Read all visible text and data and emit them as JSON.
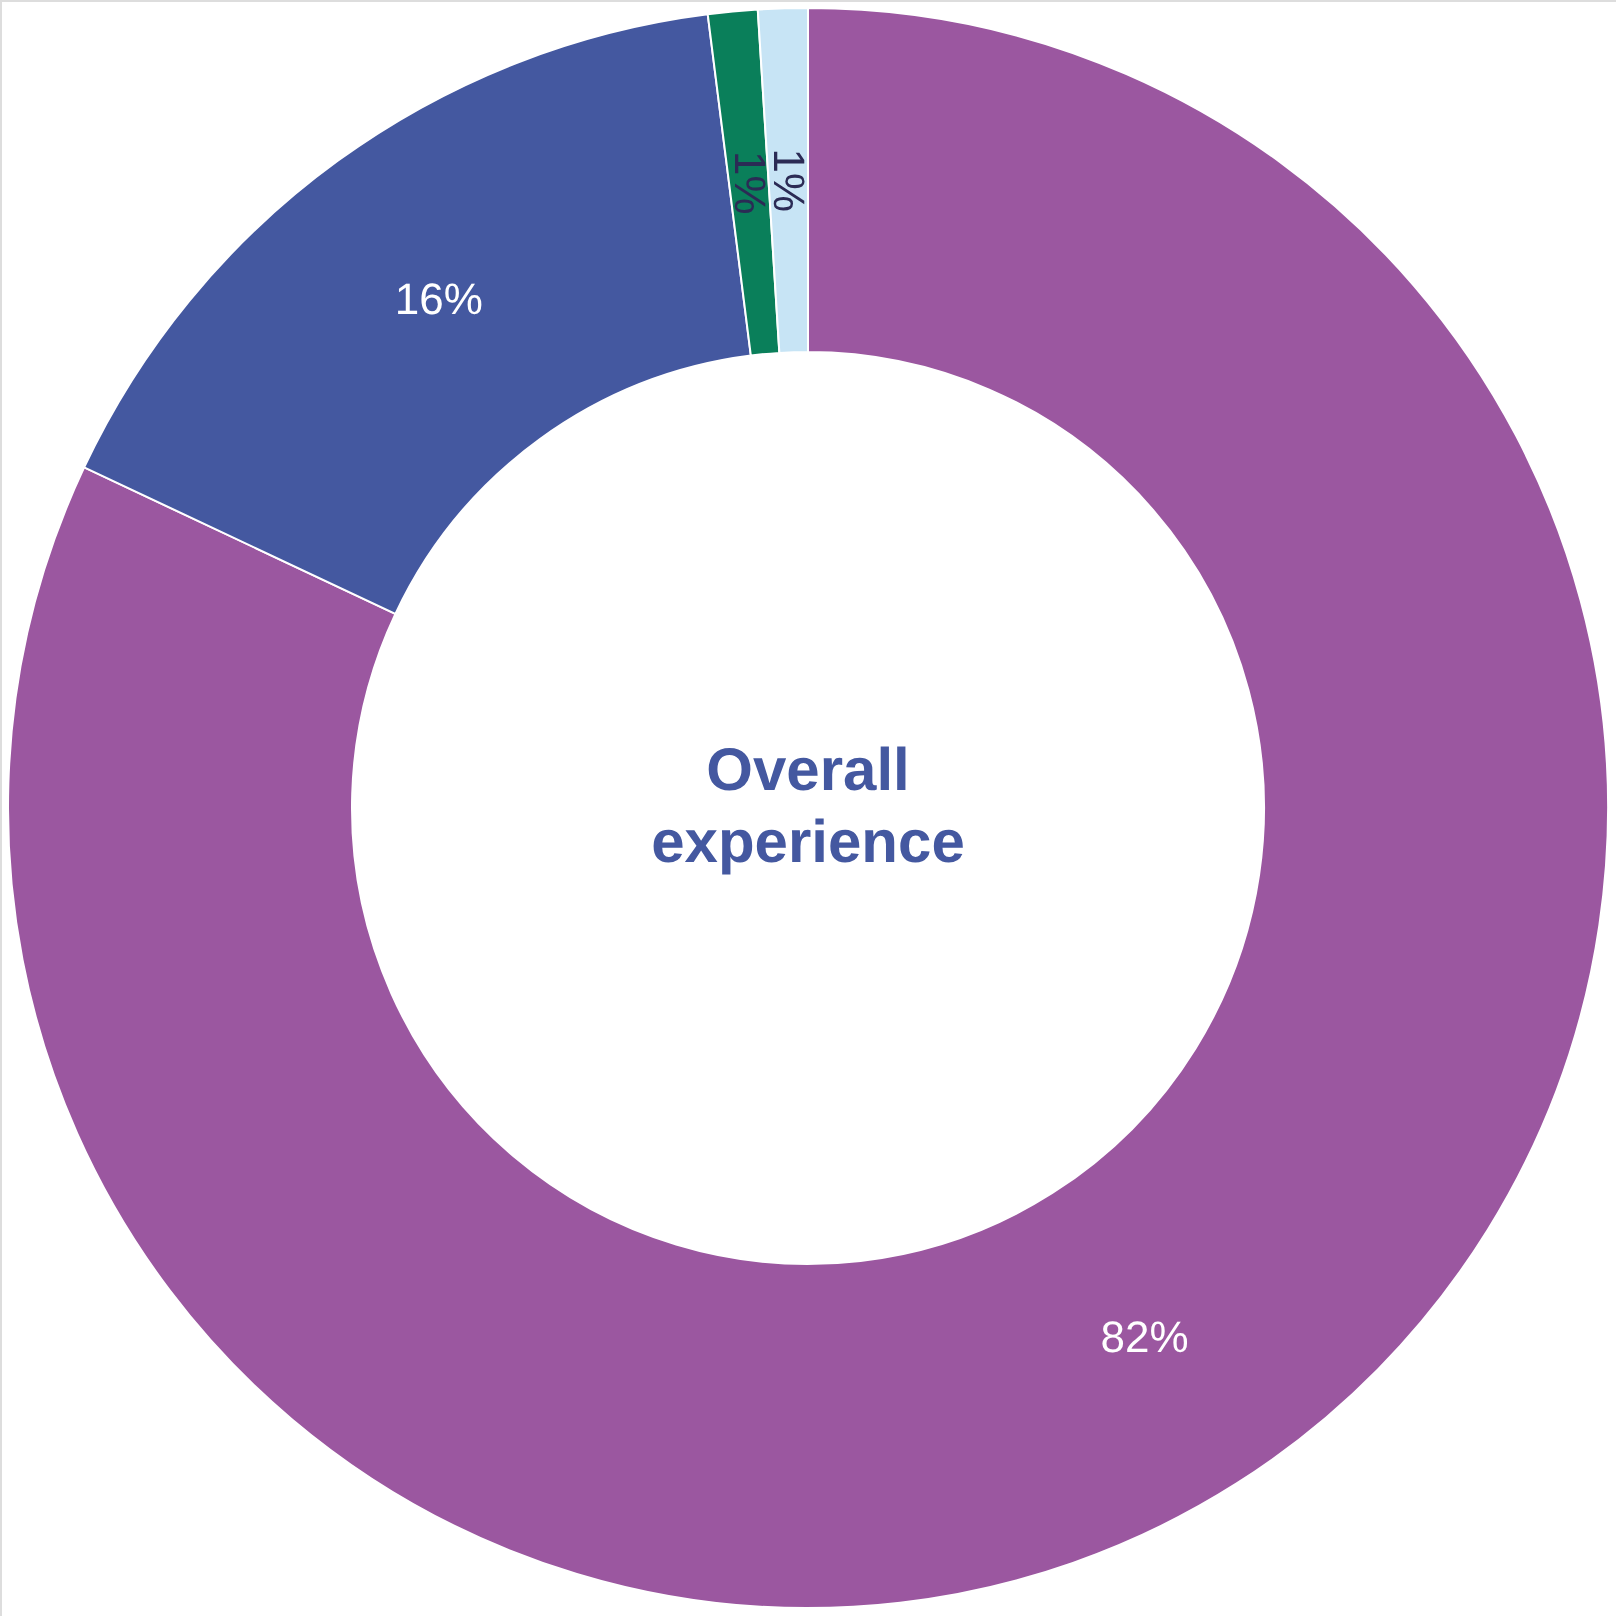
{
  "chart_data": {
    "type": "donut",
    "title": "Overall experience",
    "categories": [
      null,
      null,
      null,
      null
    ],
    "values": [
      82,
      16,
      1,
      1
    ],
    "value_labels": [
      "82%",
      "16%",
      "1%",
      "1%"
    ],
    "colors": [
      "#9b57a0",
      "#4458a0",
      "#0a7f5a",
      "#c7e4f5"
    ]
  }
}
